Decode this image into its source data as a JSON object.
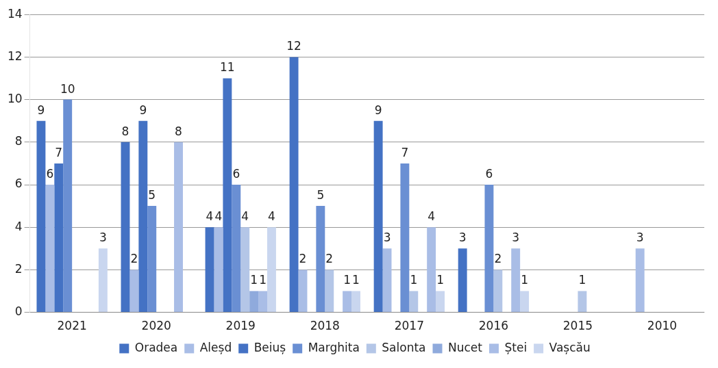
{
  "chart_data": {
    "type": "bar",
    "categories": [
      "2021",
      "2020",
      "2019",
      "2018",
      "2017",
      "2016",
      "2015",
      "2010"
    ],
    "series": [
      {
        "name": "Oradea",
        "color": "#4472c4",
        "values": [
          9,
          8,
          4,
          12,
          9,
          3,
          null,
          null
        ]
      },
      {
        "name": "Aleșd",
        "color": "#a9bde6",
        "values": [
          6,
          2,
          4,
          2,
          3,
          null,
          null,
          3
        ]
      },
      {
        "name": "Beiuș",
        "color": "#4472c4",
        "values": [
          7,
          9,
          11,
          null,
          null,
          null,
          null,
          null
        ]
      },
      {
        "name": "Marghita",
        "color": "#6a8fd3",
        "values": [
          10,
          5,
          6,
          5,
          7,
          6,
          null,
          null
        ]
      },
      {
        "name": "Salonta",
        "color": "#b4c6e7",
        "values": [
          null,
          null,
          4,
          2,
          1,
          2,
          1,
          null
        ]
      },
      {
        "name": "Nucet",
        "color": "#8faadc",
        "values": [
          null,
          null,
          1,
          null,
          null,
          null,
          null,
          null
        ]
      },
      {
        "name": "Ștei",
        "color": "#a9bde6",
        "values": [
          null,
          8,
          1,
          1,
          4,
          3,
          null,
          null
        ]
      },
      {
        "name": "Vașcău",
        "color": "#c9d6ef",
        "values": [
          3,
          null,
          4,
          1,
          1,
          1,
          null,
          null
        ]
      }
    ],
    "ylim": [
      0,
      14
    ],
    "yticks": [
      0,
      2,
      4,
      6,
      8,
      10,
      12,
      14
    ],
    "grid": "y",
    "legend": "bottom",
    "data_labels": true
  }
}
